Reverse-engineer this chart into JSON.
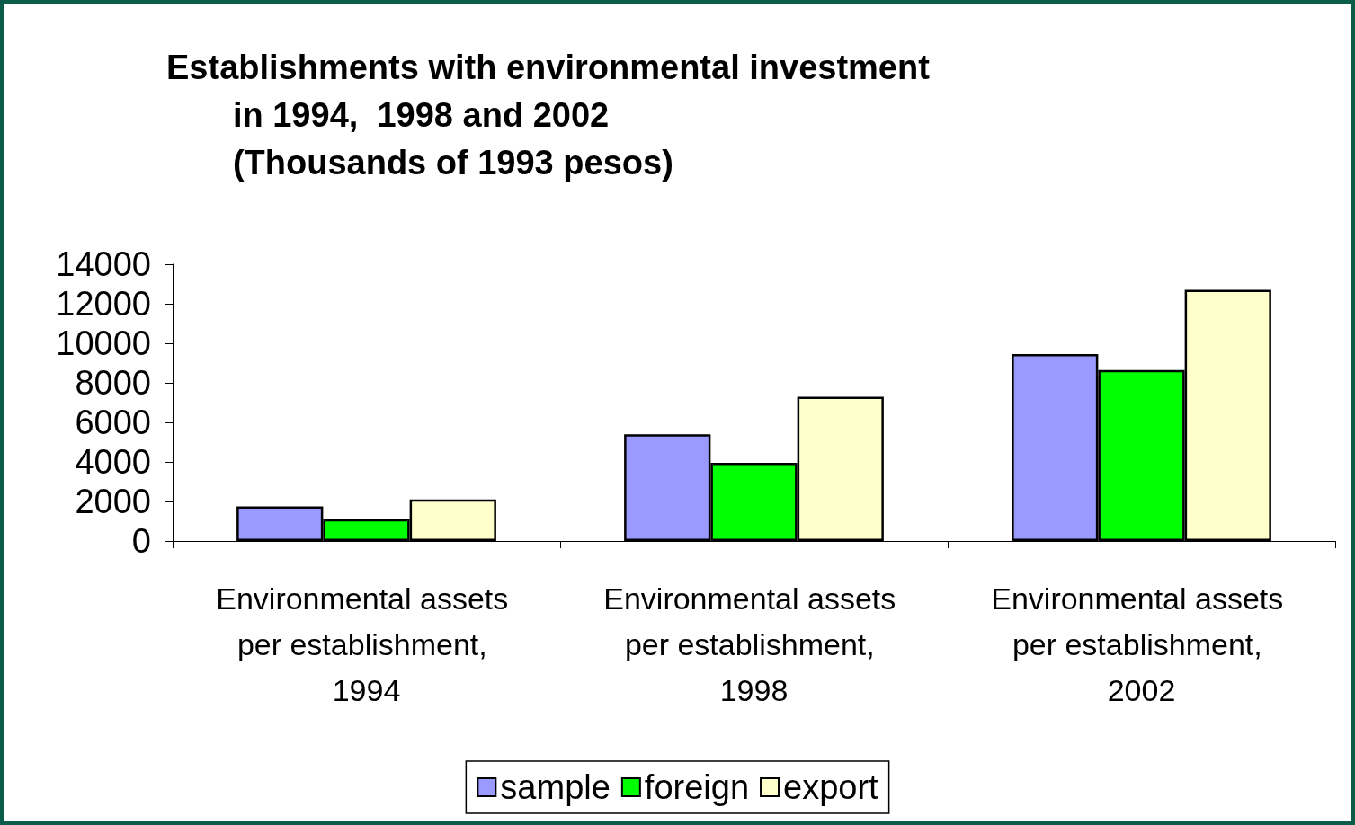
{
  "chart_data": {
    "type": "bar",
    "title": "Establishments with environmental investment\n       in 1994,  1998 and 2002\n       (Thousands of 1993 pesos)",
    "categories": [
      "Environmental assets per establishment, 1994",
      "Environmental assets per establishment, 1998",
      "Environmental assets per establishment, 2002"
    ],
    "series": [
      {
        "name": "sample",
        "color": "#9999ff",
        "values": [
          1750,
          5400,
          9450
        ]
      },
      {
        "name": "foreign",
        "color": "#00ff00",
        "values": [
          1100,
          3950,
          8650
        ]
      },
      {
        "name": "export",
        "color": "#ffffcc",
        "values": [
          2100,
          7300,
          12700
        ]
      }
    ],
    "ylim": [
      0,
      14000
    ],
    "yticks": [
      0,
      2000,
      4000,
      6000,
      8000,
      10000,
      12000,
      14000
    ],
    "grid": false,
    "legend": "bottom"
  }
}
